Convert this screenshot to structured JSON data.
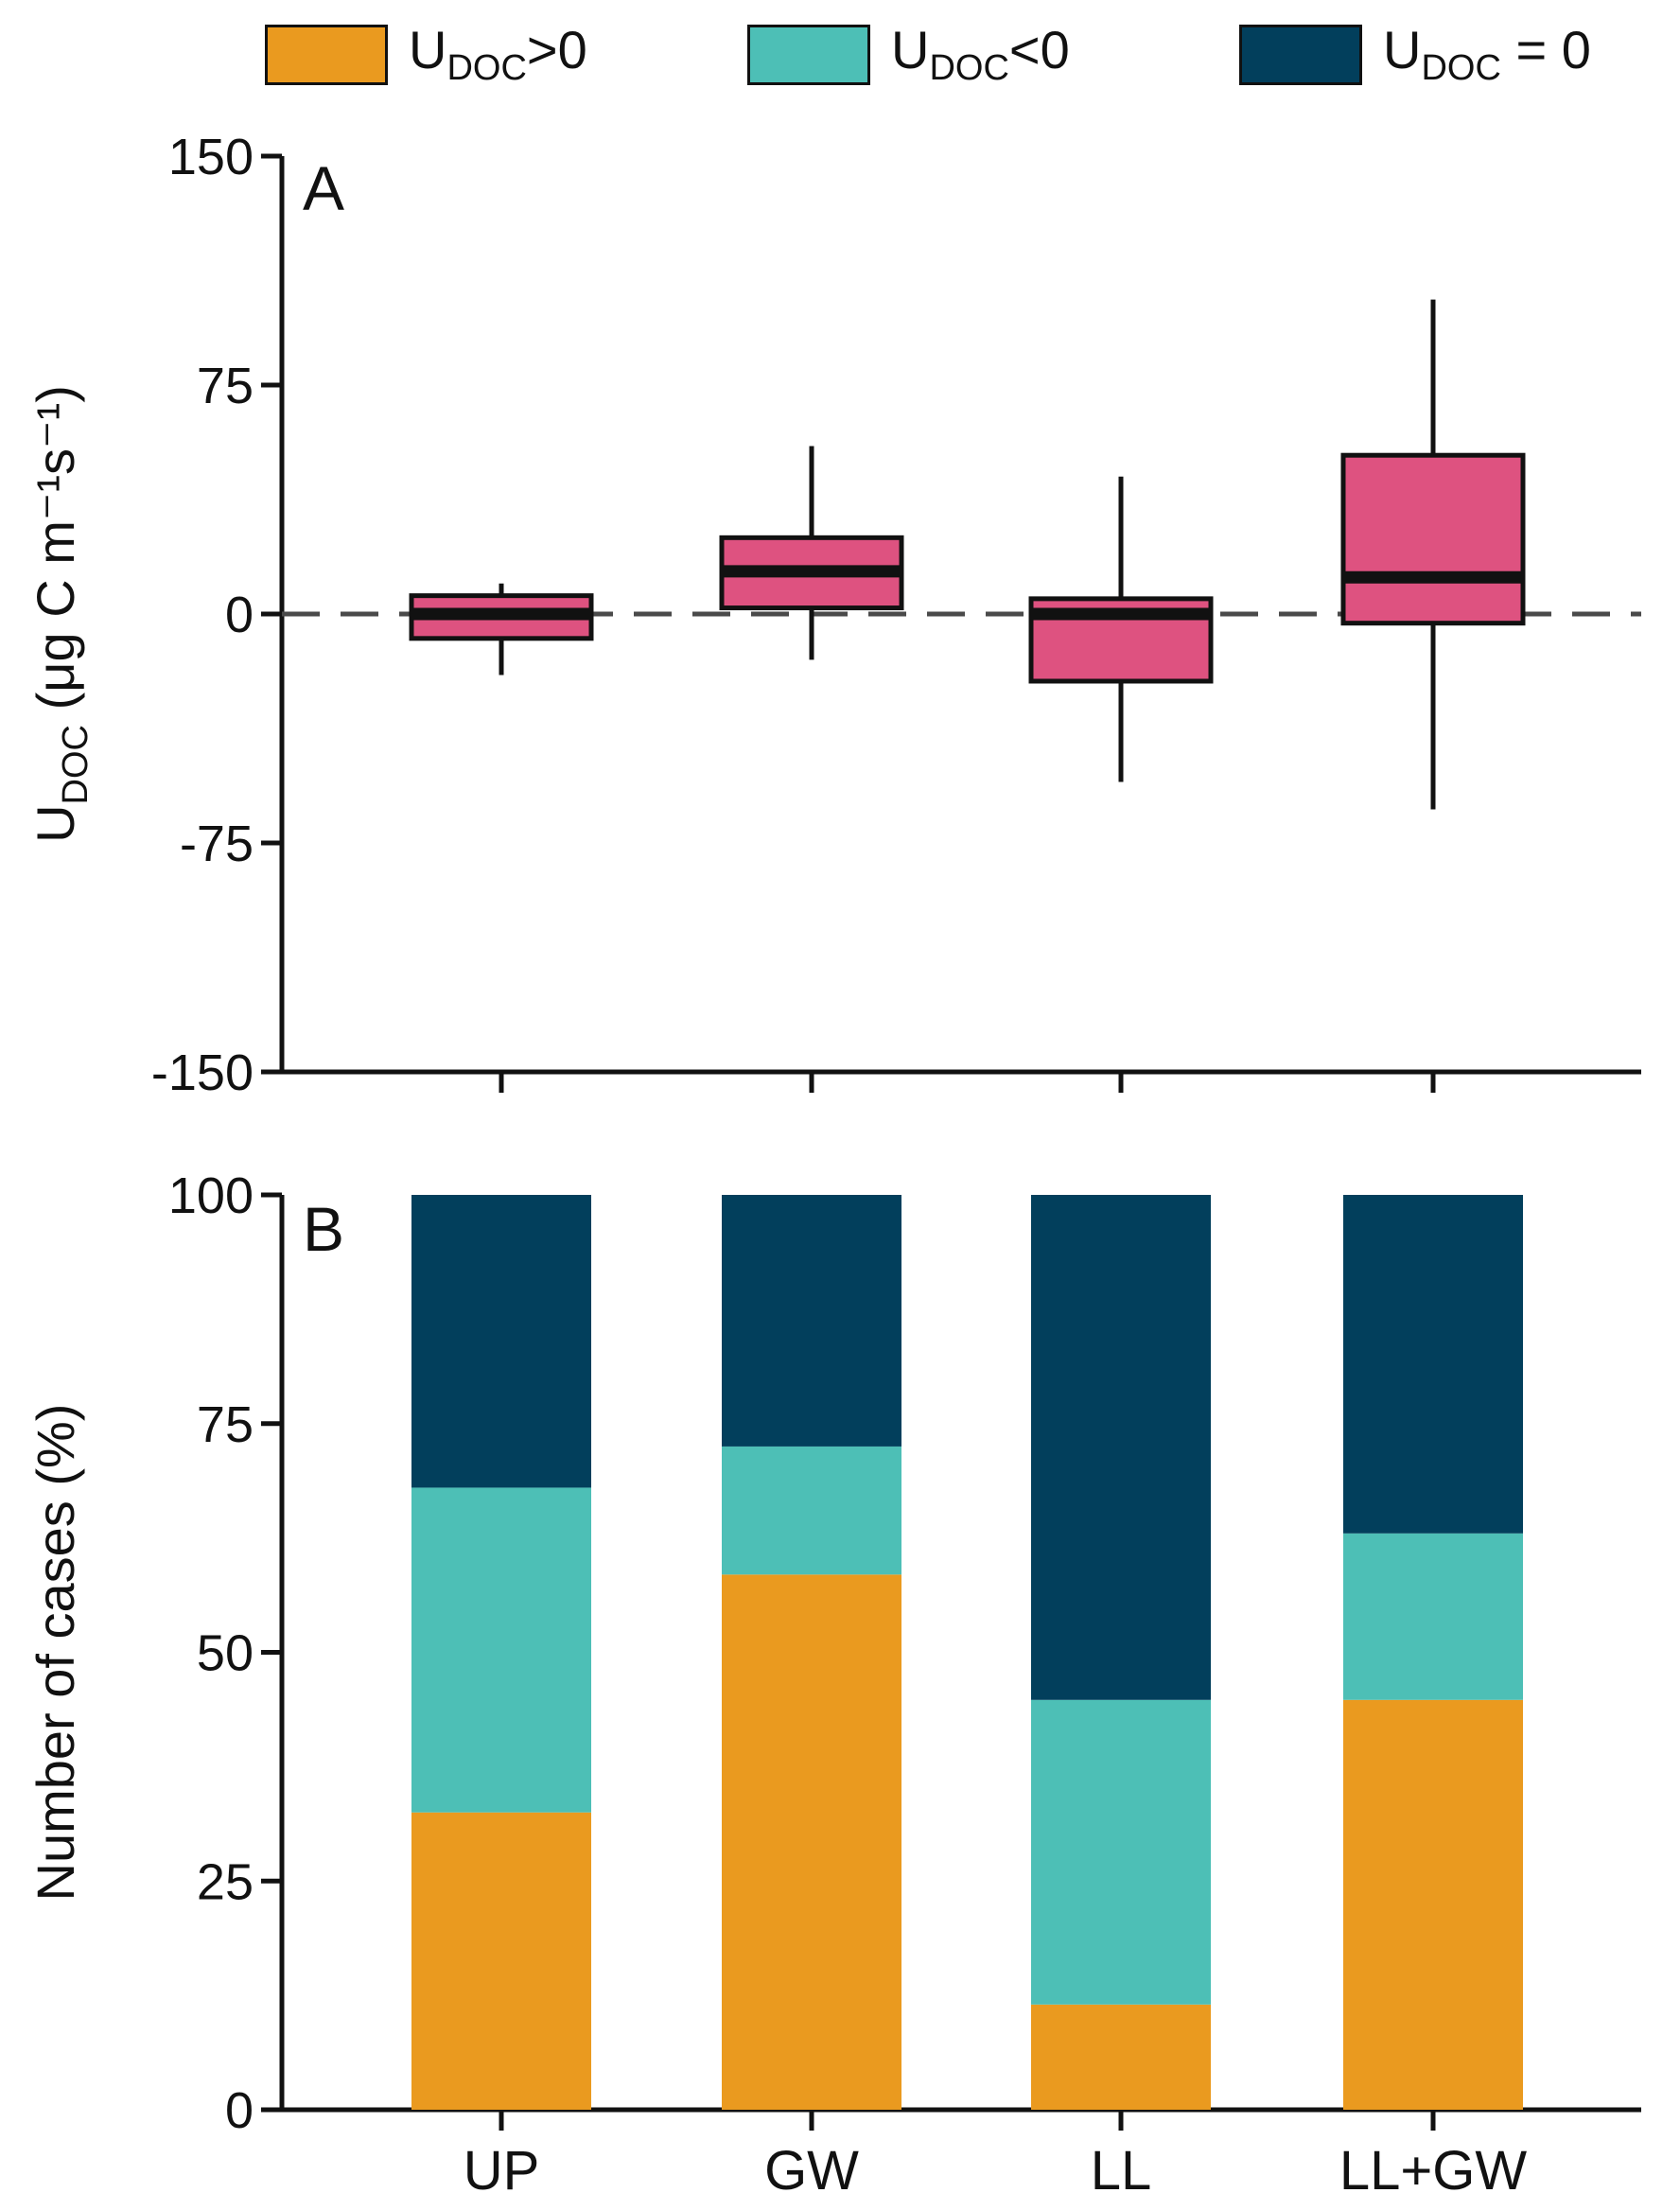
{
  "legend": {
    "items": [
      {
        "label_main": "U",
        "label_sub": "DOC",
        "label_rel": ">0",
        "color": "#EA9A1F"
      },
      {
        "label_main": "U",
        "label_sub": "DOC",
        "label_rel": "<0",
        "color": "#4DBFB6"
      },
      {
        "label_main": "U",
        "label_sub": "DOC",
        "label_rel": " = 0",
        "color": "#023F5C"
      }
    ]
  },
  "chart_data": [
    {
      "type": "box",
      "panel_label": "A",
      "ylabel_main": "U",
      "ylabel_sub": "DOC",
      "ylabel_units": "(μg C m⁻¹s⁻¹)",
      "ylim": [
        -150,
        150
      ],
      "yticks": [
        "150",
        "75",
        "0",
        "-75",
        "-150"
      ],
      "ytick_values": [
        150,
        75,
        0,
        -75,
        -150
      ],
      "reference_line": 0,
      "categories": [
        "UP",
        "GW",
        "LL",
        "LL+GW"
      ],
      "box_color": "#DE5280",
      "boxes": [
        {
          "category": "UP",
          "whisker_low": -20,
          "q1": -8,
          "median": 0,
          "q3": 6,
          "whisker_high": 10
        },
        {
          "category": "GW",
          "whisker_low": -15,
          "q1": 2,
          "median": 14,
          "q3": 25,
          "whisker_high": 55
        },
        {
          "category": "LL",
          "whisker_low": -55,
          "q1": -22,
          "median": 0,
          "q3": 5,
          "whisker_high": 45
        },
        {
          "category": "LL+GW",
          "whisker_low": -64,
          "q1": -3,
          "median": 12,
          "q3": 52,
          "whisker_high": 103
        }
      ]
    },
    {
      "type": "bar",
      "stacked": true,
      "panel_label": "B",
      "ylabel": "Number of cases (%)",
      "ylim": [
        0,
        100
      ],
      "yticks": [
        "100",
        "75",
        "50",
        "25",
        "0"
      ],
      "ytick_values": [
        100,
        75,
        50,
        25,
        0
      ],
      "categories": [
        "UP",
        "GW",
        "LL",
        "LL+GW"
      ],
      "series": [
        {
          "name": "UDOC>0",
          "color": "#EA9A1F",
          "values": [
            32.5,
            58.5,
            11.5,
            44.8
          ]
        },
        {
          "name": "UDOC<0",
          "color": "#4DBFB6",
          "values": [
            35.5,
            14.0,
            33.3,
            18.2
          ]
        },
        {
          "name": "UDOC = 0",
          "color": "#023F5C",
          "values": [
            32.0,
            27.5,
            55.2,
            37.0
          ]
        }
      ]
    }
  ]
}
